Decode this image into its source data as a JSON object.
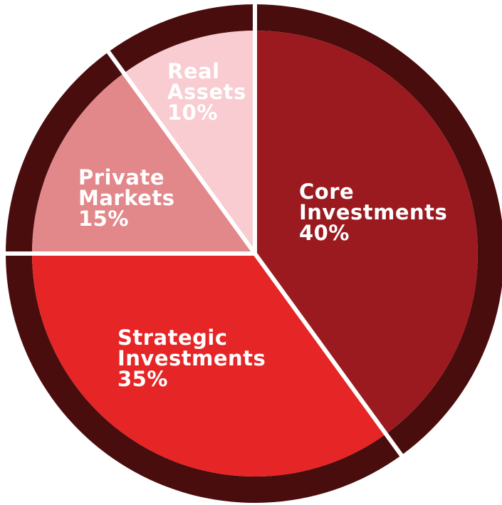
{
  "chart_data": {
    "type": "pie",
    "categories": [
      "Core Investments",
      "Strategic Investments",
      "Private Markets",
      "Real Assets"
    ],
    "values": [
      40,
      35,
      15,
      10
    ],
    "value_labels": [
      "40%",
      "35%",
      "15%",
      "10%"
    ],
    "colors": [
      "#9a1a1f",
      "#e62526",
      "#e2878a",
      "#f8ccd0"
    ],
    "ring_color": "#4a0d0e"
  }
}
